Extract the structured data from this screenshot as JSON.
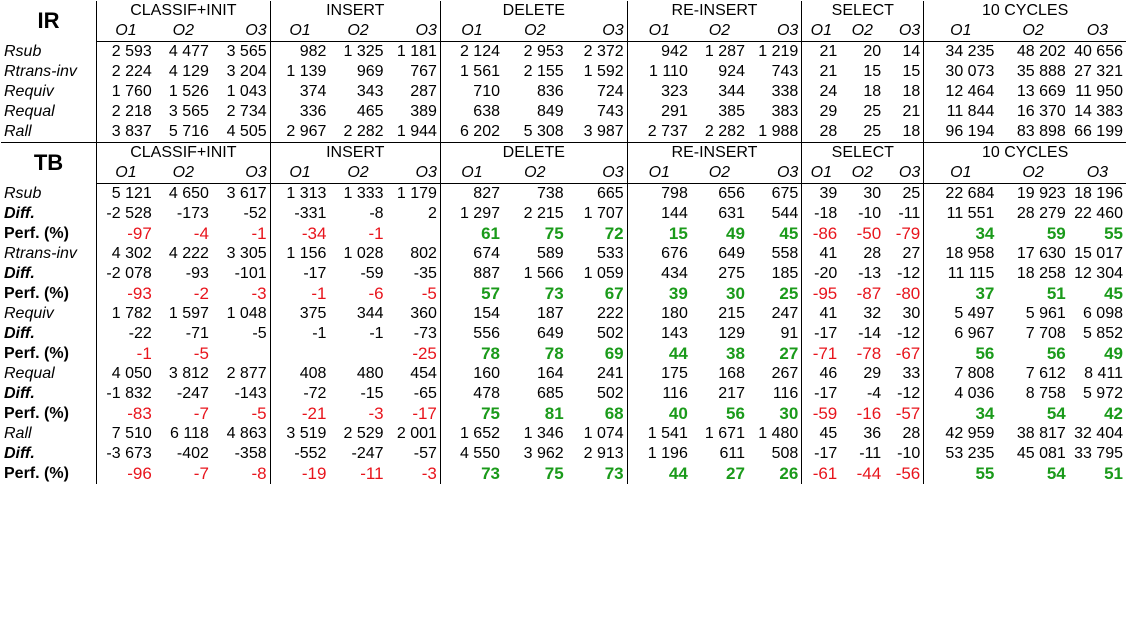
{
  "groups": [
    "CLASSIF+INIT",
    "INSERT",
    "DELETE",
    "RE-INSERT",
    "SELECT",
    "10 CYCLES"
  ],
  "sub": [
    "O1",
    "O2",
    "O3"
  ],
  "colors": {
    "negative": "#e8141c",
    "positive": "#1a9a1a"
  },
  "sections": [
    {
      "title": "IR",
      "rows": [
        {
          "label": "Rsub",
          "style": "it",
          "values": [
            "2 593",
            "4 477",
            "3 565",
            "982",
            "1 325",
            "1 181",
            "2 124",
            "2 953",
            "2 372",
            "942",
            "1 287",
            "1 219",
            "21",
            "20",
            "14",
            "34 235",
            "48 202",
            "40 656"
          ]
        },
        {
          "label": "Rtrans-inv",
          "style": "it",
          "values": [
            "2 224",
            "4 129",
            "3 204",
            "1 139",
            "969",
            "767",
            "1 561",
            "2 155",
            "1 592",
            "1 110",
            "924",
            "743",
            "21",
            "15",
            "15",
            "30 073",
            "35 888",
            "27 321"
          ]
        },
        {
          "label": "Requiv",
          "style": "it",
          "values": [
            "1 760",
            "1 526",
            "1 043",
            "374",
            "343",
            "287",
            "710",
            "836",
            "724",
            "323",
            "344",
            "338",
            "24",
            "18",
            "18",
            "12 464",
            "13 669",
            "11 950"
          ]
        },
        {
          "label": "Requal",
          "style": "it",
          "values": [
            "2 218",
            "3 565",
            "2 734",
            "336",
            "465",
            "389",
            "638",
            "849",
            "743",
            "291",
            "385",
            "383",
            "29",
            "25",
            "21",
            "11 844",
            "16 370",
            "14 383"
          ]
        },
        {
          "label": "Rall",
          "style": "it",
          "values": [
            "3 837",
            "5 716",
            "4 505",
            "2 967",
            "2 282",
            "1 944",
            "6 202",
            "5 308",
            "3 987",
            "2 737",
            "2 282",
            "1 988",
            "28",
            "25",
            "18",
            "96 194",
            "83 898",
            "66 199"
          ]
        }
      ]
    },
    {
      "title": "TB",
      "rows": [
        {
          "label": "Rsub",
          "style": "it",
          "values": [
            "5 121",
            "4 650",
            "3 617",
            "1 313",
            "1 333",
            "1 179",
            "827",
            "738",
            "665",
            "798",
            "656",
            "675",
            "39",
            "30",
            "25",
            "22 684",
            "19 923",
            "18 196"
          ]
        },
        {
          "label": "Diff.",
          "style": "bi",
          "values": [
            "-2 528",
            "-173",
            "-52",
            "-331",
            "-8",
            "2",
            "1 297",
            "2 215",
            "1 707",
            "144",
            "631",
            "544",
            "-18",
            "-10",
            "-11",
            "11 551",
            "28 279",
            "22 460"
          ]
        },
        {
          "label": "Perf. (%)",
          "style": "b",
          "perf": true,
          "values": [
            "-97",
            "-4",
            "-1",
            "-34",
            "-1",
            "",
            "61",
            "75",
            "72",
            "15",
            "49",
            "45",
            "-86",
            "-50",
            "-79",
            "34",
            "59",
            "55"
          ]
        },
        {
          "label": "Rtrans-inv",
          "style": "it",
          "values": [
            "4 302",
            "4 222",
            "3 305",
            "1 156",
            "1 028",
            "802",
            "674",
            "589",
            "533",
            "676",
            "649",
            "558",
            "41",
            "28",
            "27",
            "18 958",
            "17 630",
            "15 017"
          ]
        },
        {
          "label": "Diff.",
          "style": "bi",
          "values": [
            "-2 078",
            "-93",
            "-101",
            "-17",
            "-59",
            "-35",
            "887",
            "1 566",
            "1 059",
            "434",
            "275",
            "185",
            "-20",
            "-13",
            "-12",
            "11 115",
            "18 258",
            "12 304"
          ]
        },
        {
          "label": "Perf. (%)",
          "style": "b",
          "perf": true,
          "values": [
            "-93",
            "-2",
            "-3",
            "-1",
            "-6",
            "-5",
            "57",
            "73",
            "67",
            "39",
            "30",
            "25",
            "-95",
            "-87",
            "-80",
            "37",
            "51",
            "45"
          ]
        },
        {
          "label": "Requiv",
          "style": "it",
          "values": [
            "1 782",
            "1 597",
            "1 048",
            "375",
            "344",
            "360",
            "154",
            "187",
            "222",
            "180",
            "215",
            "247",
            "41",
            "32",
            "30",
            "5 497",
            "5 961",
            "6 098"
          ]
        },
        {
          "label": "Diff.",
          "style": "bi",
          "values": [
            "-22",
            "-71",
            "-5",
            "-1",
            "-1",
            "-73",
            "556",
            "649",
            "502",
            "143",
            "129",
            "91",
            "-17",
            "-14",
            "-12",
            "6 967",
            "7 708",
            "5 852"
          ]
        },
        {
          "label": "Perf. (%)",
          "style": "b",
          "perf": true,
          "values": [
            "-1",
            "-5",
            "",
            "",
            "",
            "-25",
            "78",
            "78",
            "69",
            "44",
            "38",
            "27",
            "-71",
            "-78",
            "-67",
            "56",
            "56",
            "49"
          ]
        },
        {
          "label": "Requal",
          "style": "it",
          "values": [
            "4 050",
            "3 812",
            "2 877",
            "408",
            "480",
            "454",
            "160",
            "164",
            "241",
            "175",
            "168",
            "267",
            "46",
            "29",
            "33",
            "7 808",
            "7 612",
            "8 411"
          ]
        },
        {
          "label": "Diff.",
          "style": "bi",
          "values": [
            "-1 832",
            "-247",
            "-143",
            "-72",
            "-15",
            "-65",
            "478",
            "685",
            "502",
            "116",
            "217",
            "116",
            "-17",
            "-4",
            "-12",
            "4 036",
            "8 758",
            "5 972"
          ]
        },
        {
          "label": "Perf. (%)",
          "style": "b",
          "perf": true,
          "values": [
            "-83",
            "-7",
            "-5",
            "-21",
            "-3",
            "-17",
            "75",
            "81",
            "68",
            "40",
            "56",
            "30",
            "-59",
            "-16",
            "-57",
            "34",
            "54",
            "42"
          ]
        },
        {
          "label": "Rall",
          "style": "it",
          "values": [
            "7 510",
            "6 118",
            "4 863",
            "3 519",
            "2 529",
            "2 001",
            "1 652",
            "1 346",
            "1 074",
            "1 541",
            "1 671",
            "1 480",
            "45",
            "36",
            "28",
            "42 959",
            "38 817",
            "32 404"
          ]
        },
        {
          "label": "Diff.",
          "style": "bi",
          "values": [
            "-3 673",
            "-402",
            "-358",
            "-552",
            "-247",
            "-57",
            "4 550",
            "3 962",
            "2 913",
            "1 196",
            "611",
            "508",
            "-17",
            "-11",
            "-10",
            "53 235",
            "45 081",
            "33 795"
          ]
        },
        {
          "label": "Perf. (%)",
          "style": "b",
          "perf": true,
          "values": [
            "-96",
            "-7",
            "-8",
            "-19",
            "-11",
            "-3",
            "73",
            "75",
            "73",
            "44",
            "27",
            "26",
            "-61",
            "-44",
            "-56",
            "55",
            "54",
            "51"
          ]
        }
      ]
    }
  ]
}
